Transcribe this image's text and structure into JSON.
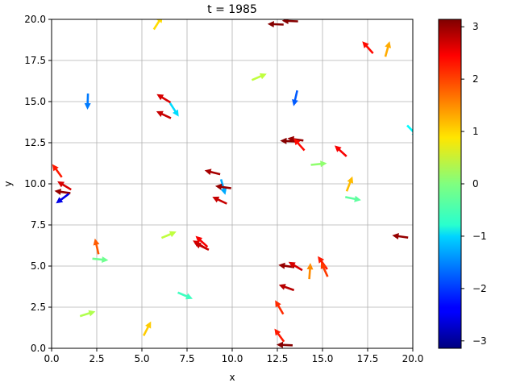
{
  "chart_data": {
    "type": "quiver",
    "title": "t = 1985",
    "xlabel": "x",
    "ylabel": "y",
    "xlim": [
      0,
      20
    ],
    "ylim": [
      0,
      20
    ],
    "xticks": [
      "0.0",
      "2.5",
      "5.0",
      "7.5",
      "10.0",
      "12.5",
      "15.0",
      "17.5",
      "20.0"
    ],
    "yticks": [
      "0.0",
      "2.5",
      "5.0",
      "7.5",
      "10.0",
      "12.5",
      "15.0",
      "17.5",
      "20.0"
    ],
    "grid": true,
    "colorbar": {
      "colormap": "jet",
      "range": [
        -3.14159,
        3.14159
      ],
      "ticks": [
        "3",
        "2",
        "1",
        "0",
        "−1",
        "−2",
        "−3"
      ]
    },
    "arrows": [
      {
        "x": 5.9,
        "y": 19.8,
        "angle": 1.0
      },
      {
        "x": 12.4,
        "y": 19.7,
        "angle": 3.1
      },
      {
        "x": 13.2,
        "y": 19.9,
        "angle": 3.1
      },
      {
        "x": 17.5,
        "y": 18.3,
        "angle": 2.3
      },
      {
        "x": 18.6,
        "y": 18.2,
        "angle": 1.3
      },
      {
        "x": 11.5,
        "y": 16.5,
        "angle": 0.4
      },
      {
        "x": 2.0,
        "y": 15.0,
        "angle": -1.6
      },
      {
        "x": 6.2,
        "y": 15.2,
        "angle": 2.6
      },
      {
        "x": 6.2,
        "y": 14.2,
        "angle": 2.7
      },
      {
        "x": 6.8,
        "y": 14.5,
        "angle": -1.0
      },
      {
        "x": 13.5,
        "y": 15.2,
        "angle": -1.8
      },
      {
        "x": 13.1,
        "y": 12.6,
        "angle": 3.1
      },
      {
        "x": 13.5,
        "y": 12.7,
        "angle": 3.0
      },
      {
        "x": 13.7,
        "y": 12.4,
        "angle": 2.3
      },
      {
        "x": 16.0,
        "y": 12.0,
        "angle": 2.4
      },
      {
        "x": 14.8,
        "y": 11.2,
        "angle": 0.1
      },
      {
        "x": 16.5,
        "y": 10.0,
        "angle": 1.2
      },
      {
        "x": 16.7,
        "y": 9.1,
        "angle": -0.2
      },
      {
        "x": 8.9,
        "y": 10.7,
        "angle": 2.9
      },
      {
        "x": 9.5,
        "y": 9.8,
        "angle": -1.3
      },
      {
        "x": 9.5,
        "y": 9.8,
        "angle": 3.0
      },
      {
        "x": 9.3,
        "y": 9.0,
        "angle": 2.7
      },
      {
        "x": 0.3,
        "y": 10.8,
        "angle": 2.2
      },
      {
        "x": 0.7,
        "y": 9.9,
        "angle": 2.6
      },
      {
        "x": 0.6,
        "y": 9.5,
        "angle": 3.0
      },
      {
        "x": 0.6,
        "y": 9.1,
        "angle": -2.5
      },
      {
        "x": 19.3,
        "y": 6.8,
        "angle": 3.0
      },
      {
        "x": 2.5,
        "y": 6.2,
        "angle": 1.8
      },
      {
        "x": 2.7,
        "y": 5.4,
        "angle": -0.1
      },
      {
        "x": 6.5,
        "y": 6.9,
        "angle": 0.4
      },
      {
        "x": 8.2,
        "y": 6.3,
        "angle": 2.6
      },
      {
        "x": 8.3,
        "y": 6.5,
        "angle": 2.4
      },
      {
        "x": 8.3,
        "y": 6.2,
        "angle": 2.7
      },
      {
        "x": 13.0,
        "y": 5.0,
        "angle": 3.0
      },
      {
        "x": 13.5,
        "y": 5.0,
        "angle": 2.6
      },
      {
        "x": 14.3,
        "y": 4.7,
        "angle": 1.5
      },
      {
        "x": 15.0,
        "y": 5.2,
        "angle": 2.2
      },
      {
        "x": 15.1,
        "y": 4.8,
        "angle": 2.0
      },
      {
        "x": 13.0,
        "y": 3.7,
        "angle": 2.8
      },
      {
        "x": 7.4,
        "y": 3.2,
        "angle": -0.4
      },
      {
        "x": 12.6,
        "y": 2.5,
        "angle": 2.1
      },
      {
        "x": 12.6,
        "y": 0.8,
        "angle": 2.2
      },
      {
        "x": 12.9,
        "y": 0.2,
        "angle": 3.1
      },
      {
        "x": 2.0,
        "y": 2.1,
        "angle": 0.3
      },
      {
        "x": 5.3,
        "y": 1.2,
        "angle": 1.1
      },
      {
        "x": 20.0,
        "y": 13.2,
        "angle": -0.8
      }
    ]
  }
}
